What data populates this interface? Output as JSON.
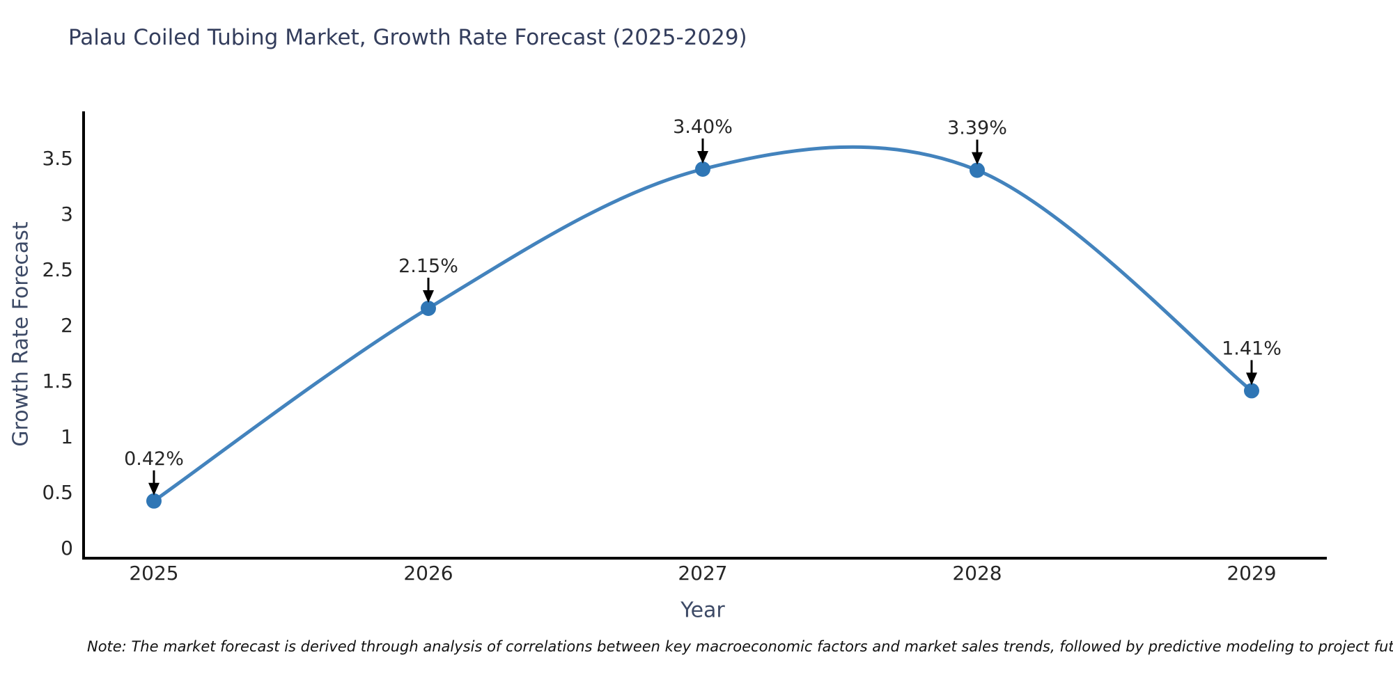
{
  "title": "Palau Coiled Tubing Market, Growth Rate Forecast (2025-2029)",
  "x_axis_label": "Year",
  "y_axis_label": "Growth Rate Forecast",
  "note": "Note: The market forecast is derived through analysis of correlations between key macroeconomic factors and market sales trends, followed by predictive modeling to project future sales",
  "colors": {
    "line": "#4383bd",
    "marker": "#2f76b5",
    "axis": "#000000",
    "tick_label": "#262626",
    "annotation_text": "#262626",
    "annotation_arrow": "#000000",
    "title": "#333d5c",
    "axis_label": "#3d4a66",
    "note": "#111111",
    "background": "#ffffff"
  },
  "chart_data": {
    "type": "line",
    "title": "Palau Coiled Tubing Market, Growth Rate Forecast (2025-2029)",
    "xlabel": "Year",
    "ylabel": "Growth Rate Forecast",
    "x": [
      2025,
      2026,
      2027,
      2028,
      2029
    ],
    "values": [
      0.42,
      2.15,
      3.4,
      3.39,
      1.41
    ],
    "point_labels": [
      "0.42%",
      "2.15%",
      "3.40%",
      "3.39%",
      "1.41%"
    ],
    "xtick_labels": [
      "2025",
      "2026",
      "2027",
      "2028",
      "2029"
    ],
    "ytick_values": [
      0,
      0.5,
      1,
      1.5,
      2,
      2.5,
      3,
      3.5
    ],
    "ytick_labels": [
      "0",
      "0.5",
      "1",
      "1.5",
      "2",
      "2.5",
      "3",
      "3.5"
    ],
    "ylim": [
      -0.09,
      3.92
    ],
    "grid": false,
    "legend_position": "none",
    "line_shape": "spline",
    "markers": true,
    "annotation_style": "value-above-with-down-arrow"
  }
}
